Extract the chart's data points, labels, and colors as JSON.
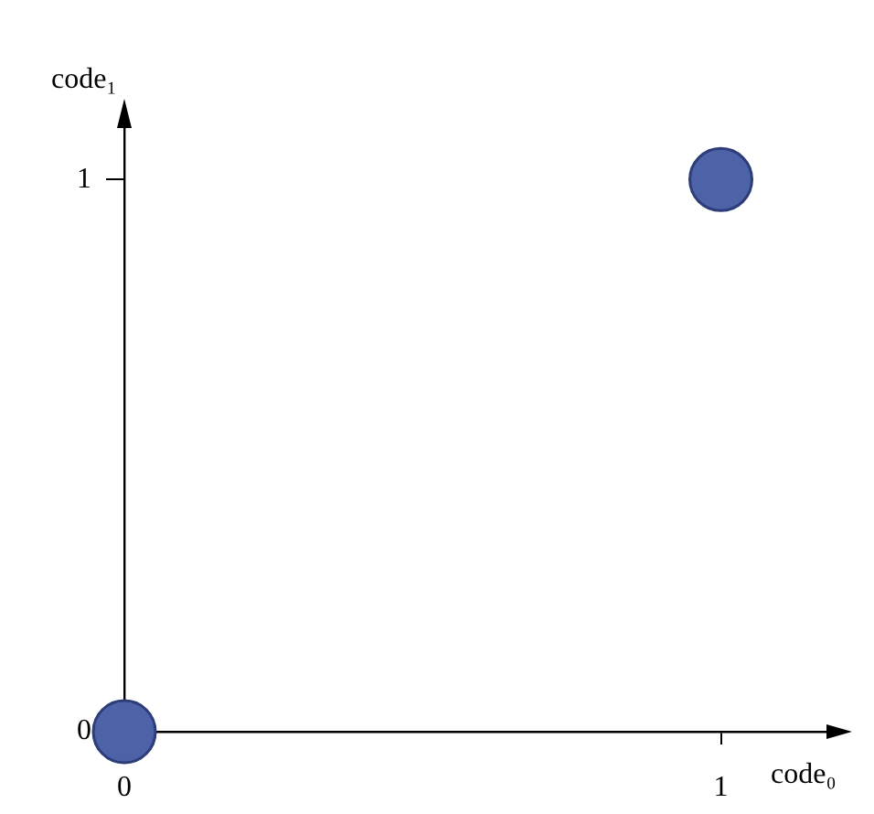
{
  "chart_data": {
    "type": "scatter",
    "xlabel": "code₀",
    "ylabel": "code₁",
    "x": [
      0,
      1
    ],
    "series": [
      {
        "color": "#4e62a8",
        "values": [
          0,
          1
        ]
      }
    ],
    "xlim": [
      0,
      1.2
    ],
    "ylim": [
      0,
      1.1
    ],
    "xticks": [
      0,
      1
    ],
    "yticks": [
      0,
      1
    ],
    "grid": false,
    "legend": false,
    "marker": "circle"
  }
}
